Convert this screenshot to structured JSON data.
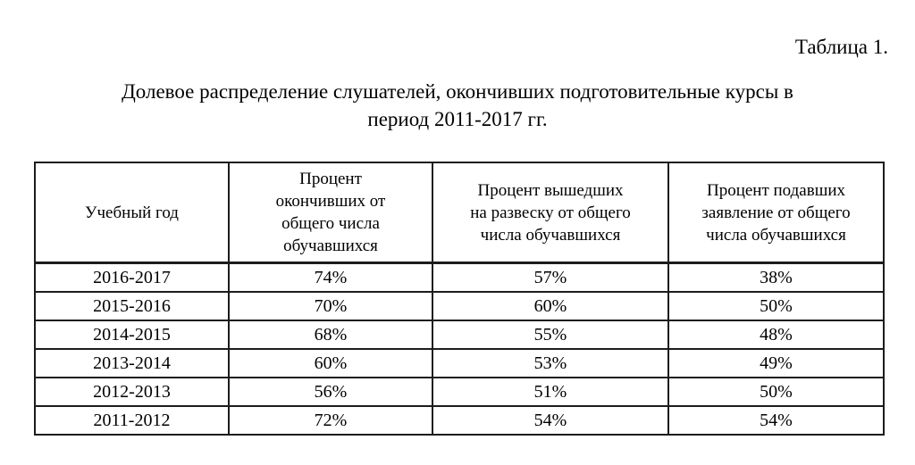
{
  "page": {
    "table_label": "Таблица 1.",
    "title": "Долевое распределение слушателей, окончивших подготовительные курсы в\nпериод 2011-2017 гг."
  },
  "table": {
    "headers": [
      "Учебный год",
      "Процент\nокончивших от\nобщего числа\nобучавшихся",
      "Процент вышедших\nна развеску от общего\nчисла обучавшихся",
      "Процент подавших\nзаявление от общего\nчисла обучавшихся"
    ],
    "rows": [
      [
        "2016-2017",
        "74%",
        "57%",
        "38%"
      ],
      [
        "2015-2016",
        "70%",
        "60%",
        "50%"
      ],
      [
        "2014-2015",
        "68%",
        "55%",
        "48%"
      ],
      [
        "2013-2014",
        "60%",
        "53%",
        "49%"
      ],
      [
        "2012-2013",
        "56%",
        "51%",
        "50%"
      ],
      [
        "2011-2012",
        "72%",
        "54%",
        "54%"
      ]
    ]
  }
}
